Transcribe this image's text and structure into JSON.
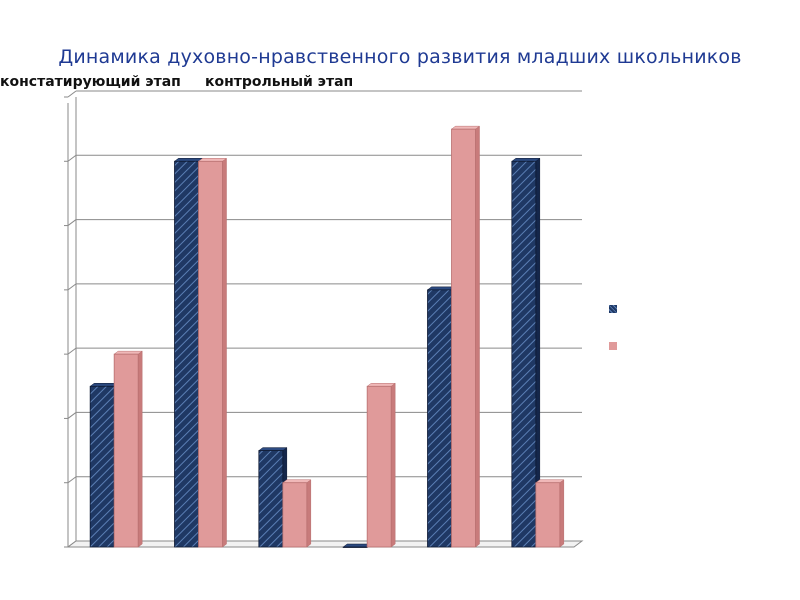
{
  "title": "Динамика духовно-нравственного развития младших школьников",
  "header_labels": {
    "left": "констатирующий этап",
    "right": "контрольный этап"
  },
  "colors": {
    "series1": "#1f3864",
    "series1_hatch": "#5b7fb5",
    "series2": "#e09a9a",
    "series2_side": "#c87b7b",
    "grid": "#8a8a8a",
    "title": "#1f3a93"
  },
  "chart_data": {
    "type": "bar",
    "categories": [
      "",
      "",
      "",
      "",
      "",
      ""
    ],
    "series": [
      {
        "values": [
          2.5,
          6,
          1.5,
          0,
          4,
          6
        ]
      },
      {
        "values": [
          3,
          6,
          1,
          2.5,
          6.5,
          1
        ]
      }
    ],
    "ylim": [
      0,
      7
    ],
    "grid": true,
    "legend": "right"
  }
}
